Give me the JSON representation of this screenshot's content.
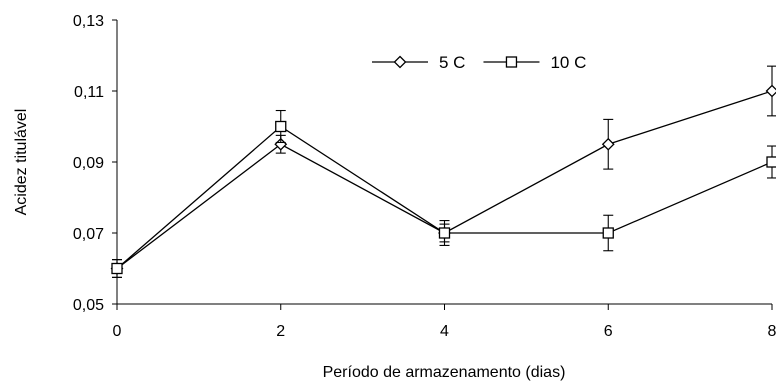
{
  "chart_data": {
    "type": "line",
    "title": "",
    "xlabel": "Período de armazenamento (dias)",
    "ylabel": "Acidez titulável",
    "x": [
      0,
      2,
      4,
      6,
      8
    ],
    "x_tick_labels": [
      "0",
      "2",
      "4",
      "6",
      "8"
    ],
    "xlim": [
      0,
      8
    ],
    "ylim": [
      0.05,
      0.13
    ],
    "y_ticks": [
      0.05,
      0.07,
      0.09,
      0.11,
      0.13
    ],
    "y_tick_labels": [
      "0,05",
      "0,07",
      "0,09",
      "0,11",
      "0,13"
    ],
    "grid": false,
    "legend_position": "top-center",
    "series": [
      {
        "name": "5 C",
        "marker": "diamond",
        "color": "#000000",
        "values": [
          0.06,
          0.095,
          0.07,
          0.095,
          0.11
        ],
        "errors": [
          0.0025,
          0.0025,
          0.0025,
          0.007,
          0.007
        ]
      },
      {
        "name": "10 C",
        "marker": "square",
        "color": "#000000",
        "values": [
          0.06,
          0.1,
          0.07,
          0.07,
          0.09
        ],
        "errors": [
          0.0025,
          0.0045,
          0.0035,
          0.005,
          0.0045
        ]
      }
    ]
  }
}
